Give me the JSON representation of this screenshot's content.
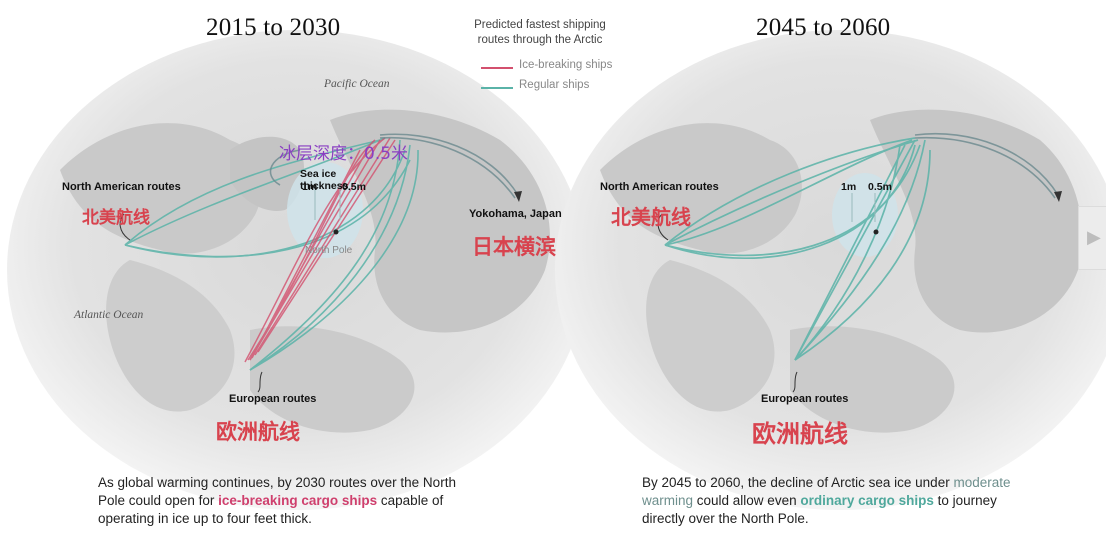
{
  "left_panel": {
    "title": "2015 to 2030",
    "ocean_pacific": "Pacific Ocean",
    "ocean_atlantic": "Atlantic Ocean",
    "na_routes": "North American routes",
    "na_routes_cn": "北美航线",
    "eu_routes": "European routes",
    "eu_routes_cn": "欧洲航线",
    "yokohama": "Yokohama, Japan",
    "yokohama_cn": "日本横滨",
    "ice_depth_cn": "冰层深度：0.5米",
    "sea_ice_thickness": "Sea ice thickness",
    "thick_1m": "1m",
    "thick_05m": "0.5m",
    "north_pole": "North Pole"
  },
  "right_panel": {
    "title": "2045 to 2060",
    "na_routes": "North American routes",
    "na_routes_cn": "北美航线",
    "eu_routes": "European routes",
    "eu_routes_cn": "欧洲航线",
    "thick_1m": "1m",
    "thick_05m": "0.5m"
  },
  "legend": {
    "heading_line1": "Predicted fastest shipping",
    "heading_line2": "routes through the Arctic",
    "ice_breaking": "Ice-breaking ships",
    "regular": "Regular ships",
    "ice_breaking_color": "#d3506e",
    "regular_color": "#5ab3a8"
  },
  "captions": {
    "left_pre": "As global warming continues, by 2030 routes over the North Pole could open for ",
    "left_hl": "ice-breaking cargo ships",
    "left_post": " capable of operating in ice up to four feet thick.",
    "right_pre": "By 2045 to 2060, the decline of Arctic sea ice under ",
    "right_hl1": "moderate warming",
    "right_mid": " could allow even ",
    "right_hl2": "ordinary cargo ships",
    "right_post": " to journey directly over the North Pole."
  },
  "nav": {
    "next_icon": "chevron-right-icon"
  }
}
